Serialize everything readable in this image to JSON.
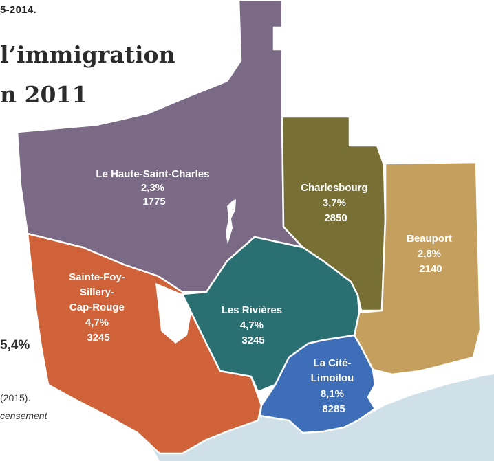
{
  "header": {
    "top_fragment": "5-2014.",
    "title_line1": "l’immigration",
    "title_line2": "n 2011"
  },
  "side": {
    "percent_fragment": "5,4%",
    "note_line1": "(2015).",
    "note_line2": "censement"
  },
  "colors": {
    "haute_saint_charles": "#7a6a85",
    "charlesbourg": "#786f35",
    "beauport": "#c49f5d",
    "sainte_foy": "#cf6238",
    "les_rivieres": "#2a7073",
    "la_cite": "#3e6eb7",
    "water": "#cfe0e9",
    "border": "#ffffff"
  },
  "districts": [
    {
      "lines": [
        "Le Haute-Saint-Charles",
        "2,3%",
        "1775"
      ]
    },
    {
      "lines": [
        "Charlesbourg",
        "3,7%",
        "2850"
      ]
    },
    {
      "lines": [
        "Beauport",
        "2,8%",
        "2140"
      ]
    },
    {
      "lines": [
        "Sainte-Foy-",
        "Sillery-",
        "Cap-Rouge",
        "4,7%",
        "3245"
      ]
    },
    {
      "lines": [
        "Les Rivières",
        "4,7%",
        "3245"
      ]
    },
    {
      "lines": [
        "La Cité-",
        "Limoilou",
        "8,1%",
        "8285"
      ]
    }
  ]
}
